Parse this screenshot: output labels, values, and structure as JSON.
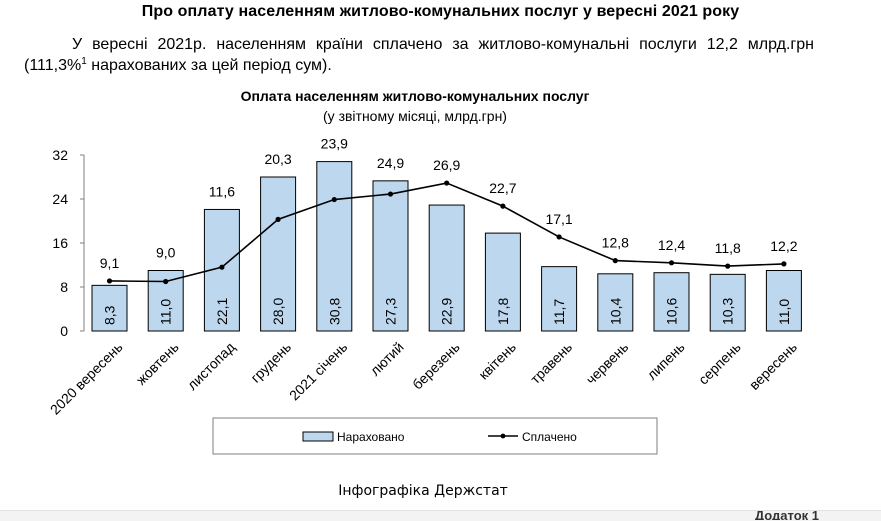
{
  "header": {
    "title": "Про оплату населенням житлово-комунальних послуг у вересні 2021 року"
  },
  "intro": {
    "text": "У вересні 2021р. населенням країни сплачено за житлово-комунальні послуги 12,2 млрд.грн (111,3%",
    "footnote_mark": "1",
    "text_end": " нарахованих за цей період сум)."
  },
  "chart_data": {
    "type": "bar",
    "title": "Оплата населенням житлово-комунальних послуг",
    "subtitle": "(у звітному місяці, млрд.грн)",
    "categories": [
      "2020 вересень",
      "жовтень",
      "листопад",
      "грудень",
      "2021 січень",
      "лютий",
      "березень",
      "квітень",
      "травень",
      "червень",
      "липень",
      "серпень",
      "вересень"
    ],
    "series": [
      {
        "name": "Нараховано",
        "kind": "bar",
        "color": "#bdd7ee",
        "values": [
          8.3,
          11.0,
          22.1,
          28.0,
          30.8,
          27.3,
          22.9,
          17.8,
          11.7,
          10.4,
          10.6,
          10.3,
          11.0
        ],
        "labels": [
          "8,3",
          "11,0",
          "22,1",
          "28,0",
          "30,8",
          "27,3",
          "22,9",
          "17,8",
          "11,7",
          "10,4",
          "10,6",
          "10,3",
          "11,0"
        ]
      },
      {
        "name": "Сплачено",
        "kind": "line",
        "color": "#000000",
        "values": [
          9.1,
          9.0,
          11.6,
          20.3,
          23.9,
          24.9,
          26.9,
          22.7,
          17.1,
          12.8,
          12.4,
          11.8,
          12.2
        ],
        "labels": [
          "9,1",
          "9,0",
          "11,6",
          "20,3",
          "23,9",
          "24,9",
          "26,9",
          "22,7",
          "17,1",
          "12,8",
          "12,4",
          "11,8",
          "12,2"
        ]
      }
    ],
    "ylim": [
      0,
      32
    ],
    "yticks": [
      0,
      8,
      16,
      24,
      32
    ],
    "legend_position": "bottom",
    "grid": false
  },
  "credit": "Інфографіка Держстат",
  "bottom_fragment": "Додаток 1"
}
